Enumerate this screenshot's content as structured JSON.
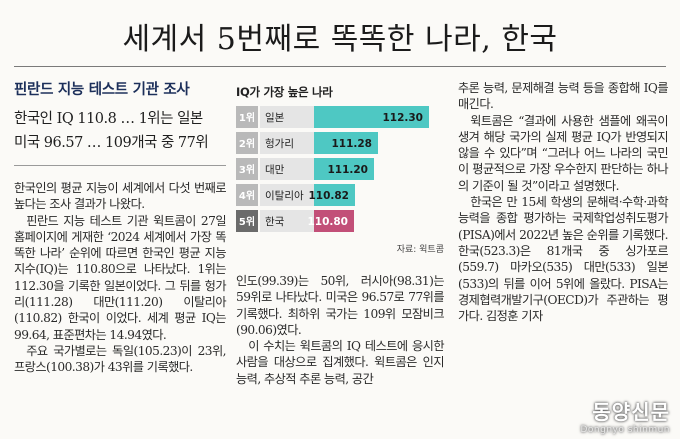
{
  "headline": "세계서 5번째로 똑똑한 나라, 한국",
  "kicker": "핀란드 지능 테스트 기관 조사",
  "subheadline": {
    "line1": "한국인 IQ 110.8 … 1위는 일본",
    "line2": "미국 96.57 … 109개국 중 77위"
  },
  "chart_data": {
    "type": "bar",
    "title": "IQ가 가장 높은 나라",
    "categories": [
      "일본",
      "헝가리",
      "대만",
      "이탈리아",
      "한국"
    ],
    "ranks": [
      "1위",
      "2위",
      "3위",
      "4위",
      "5위"
    ],
    "values": [
      112.3,
      111.28,
      111.2,
      110.82,
      110.8
    ],
    "value_labels": [
      "112.30",
      "111.28",
      "111.20",
      "110.82",
      "110.80"
    ],
    "highlight_category": "한국",
    "colors": {
      "bar": "#4ec8c3",
      "highlight": "#c24f78",
      "rank_box": "#b9b9b9",
      "rank_box_highlight": "#6b6b6b",
      "label_bg": "#e5e5e5"
    },
    "xlim": [
      110,
      112.6
    ],
    "source": "자료: 윅트콤"
  },
  "article": {
    "left": [
      "한국인의 평균 지능이 세계에서 다섯 번째로 높다는 조사 결과가 나왔다.",
      "핀란드 지능 테스트 기관 윅트콤이 27일 홈페이지에 게재한 ‘2024 세계에서 가장 똑똑한 나라’ 순위에 따르면 한국인 평균 지능지수(IQ)는 110.80으로 나타났다. 1위는 112.30을 기록한 일본이었다. 그 뒤를 헝가리(111.28) 대만(111.20) 이탈리아(110.82) 한국이 이었다. 세계 평균 IQ는 99.64, 표준편차는 14.94였다.",
      "주요 국가별로는 독일(105.23)이 23위, 프랑스(100.38)가 43위를 기록했다."
    ],
    "middle": [
      "인도(99.39)는 50위, 러시아(98.31)는 59위로 나타났다. 미국은 96.57로 77위를 기록했다. 최하위 국가는 109위 모잠비크(90.06)였다.",
      "이 수치는 윅트콤의 IQ 테스트에 응시한 사람을 대상으로 집계했다. 윅트콤은 인지능력, 추상적 추론 능력, 공간"
    ],
    "right": [
      "추론 능력, 문제해결 능력 등을 종합해 IQ를 매긴다.",
      "윅트콤은 “결과에 사용한 샘플에 왜곡이 생겨 해당 국가의 실제 평균 IQ가 반영되지 않을 수 있다”며 “그러나 어느 나라의 국민이 평균적으로 가장 우수한지 판단하는 하나의 기준이 될 것”이라고 설명했다.",
      "한국은 만 15세 학생의 문해력·수학·과학 능력을 종합 평가하는 국제학업성취도평가(PISA)에서 2022년 높은 순위를 기록했다. 한국(523.3)은 81개국 중 싱가포르(559.7) 마카오(535) 대만(533) 일본(533)의 뒤를 이어 5위에 올랐다. PISA는 경제협력개발기구(OECD)가 주관하는 평가다. 김정훈 기자"
    ]
  },
  "watermark": {
    "main": "동양신문",
    "sub": "Dongnyo shinmun"
  }
}
